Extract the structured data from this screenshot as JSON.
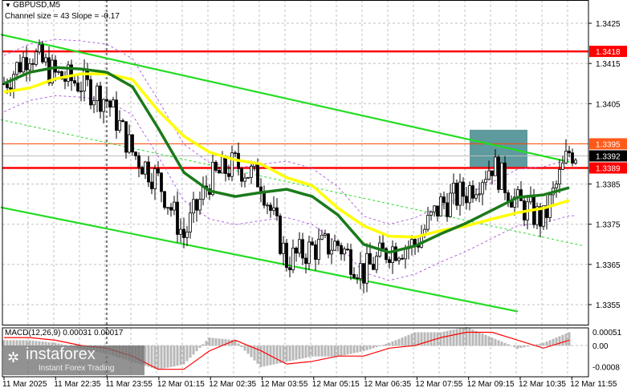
{
  "header": {
    "symbol": "GBPUSD,M5",
    "channel_info": "Channel size = 43 Slope = -0.17"
  },
  "macd_label": "MACD(12,26,9) 0.00031 0.00017",
  "watermark": {
    "brand": "instaforex",
    "tagline": "Instant Forex Trading"
  },
  "colors": {
    "channel": "#22dd22",
    "ma_fast": "#1a7a1a",
    "ma_slow": "#ffff00",
    "level": "#ff0000",
    "level_thin": "#ff4400",
    "zone": "#5e9a9e",
    "histogram": "#b8b8b8",
    "signal": "#ff0000",
    "bands": "#b266e0"
  },
  "chart_data": [
    {
      "type": "candlestick",
      "title": "GBPUSD,M5",
      "timeframe_minutes": 5,
      "price_axis": {
        "ticks": [
          "1.3425",
          "1.3415",
          "1.3405",
          "1.3385",
          "1.3375",
          "1.3365",
          "1.3355"
        ],
        "ylim": [
          1.3349,
          1.3429
        ]
      },
      "time_axis": {
        "ticks": [
          "11 Mar 2025",
          "11 Mar 22:35",
          "11 Mar 23:55",
          "12 Mar 01:15",
          "12 Mar 02:35",
          "12 Mar 03:55",
          "12 Mar 05:15",
          "12 Mar 06:35",
          "12 Mar 07:55",
          "12 Mar 09:15",
          "12 Mar 10:35",
          "12 Mar 11:55"
        ]
      },
      "times": [
        "11 21:15",
        "11 21:55",
        "11 22:35",
        "11 23:15",
        "11 23:55",
        "12 00:35",
        "12 01:15",
        "12 01:55",
        "12 02:35",
        "12 03:15",
        "12 03:55",
        "12 04:35",
        "12 05:15",
        "12 05:55",
        "12 06:35",
        "12 07:15",
        "12 07:55",
        "12 08:35",
        "12 09:15",
        "12 09:55",
        "12 10:35",
        "12 11:15",
        "12 11:55"
      ],
      "close": [
        1.341,
        1.3418,
        1.3412,
        1.341,
        1.3406,
        1.3393,
        1.3386,
        1.3372,
        1.3386,
        1.339,
        1.3386,
        1.3366,
        1.3369,
        1.337,
        1.3363,
        1.3369,
        1.337,
        1.338,
        1.3383,
        1.339,
        1.338,
        1.3376,
        1.3393
      ],
      "ma_fast": [
        1.341,
        1.34128,
        1.3414,
        1.34136,
        1.34128,
        1.34092,
        1.33989,
        1.33879,
        1.33833,
        1.33819,
        1.33829,
        1.33837,
        1.33819,
        1.33773,
        1.337,
        1.3368,
        1.33696,
        1.33726,
        1.33753,
        1.33785,
        1.33817,
        1.33823,
        1.33841
      ],
      "ma_slow": [
        1.34079,
        1.34089,
        1.34112,
        1.34124,
        1.34124,
        1.3411,
        1.34033,
        1.33969,
        1.33929,
        1.3391,
        1.339,
        1.33866,
        1.33846,
        1.3379,
        1.33746,
        1.3372,
        1.33718,
        1.33734,
        1.33746,
        1.33763,
        1.33779,
        1.3379,
        1.33809
      ],
      "channel": {
        "upper": [
          [
            "11 21:10",
            1.34222
          ],
          [
            "12 11:55",
            1.33905
          ]
        ],
        "middle": [
          [
            "11 21:10",
            1.3401
          ],
          [
            "12 12:15",
            1.33697
          ]
        ],
        "lower": [
          [
            "11 21:10",
            1.33792
          ],
          [
            "12 10:35",
            1.33533
          ]
        ]
      },
      "levels": [
        {
          "price": 1.3418,
          "label": "1.3418",
          "style": "thick"
        },
        {
          "price": 1.3395,
          "label": "1.3395",
          "style": "thin"
        },
        {
          "price": 1.3392,
          "label": "1.3392",
          "style": "current"
        },
        {
          "price": 1.3389,
          "label": "1.3389",
          "style": "thick"
        }
      ],
      "zone": {
        "from": "12 09:20",
        "to": "12 10:50",
        "high": 1.33985,
        "low": 1.3389
      },
      "vline": "11 23:55"
    },
    {
      "type": "bar",
      "title": "MACD(12,26,9)",
      "ticks": [
        "0.00051",
        "0.00",
        "-0.0008"
      ],
      "ylim": [
        -0.00095,
        0.0007
      ],
      "histogram": [
        0.0002,
        0.0002,
        0.0001,
        -0.0001,
        -0.0003,
        -0.0006,
        -0.0009,
        -0.0007,
        0.0003,
        0.0002,
        -0.0008,
        -0.0006,
        -0.0004,
        -0.0004,
        -0.0002,
        0.0001,
        0.0005,
        0.0005,
        0.0007,
        0.0003,
        -0.0001,
        0.0001,
        0.0005
      ],
      "signal": [
        0.0003,
        0.0003,
        0.0002,
        0,
        -0.0001,
        -0.0004,
        -0.0009,
        -0.0009,
        -0.0002,
        0.0002,
        -0.0002,
        -0.0007,
        -0.0006,
        -0.0004,
        -0.0004,
        -0.0001,
        0,
        0.0003,
        0.0005,
        0.0005,
        0.0002,
        -0.0001,
        0.0002
      ]
    }
  ]
}
